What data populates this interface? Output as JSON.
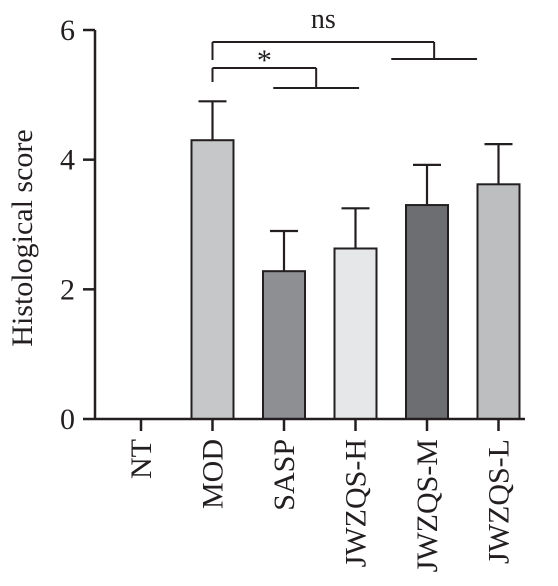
{
  "chart_data": {
    "type": "bar",
    "ylabel": "Histological score",
    "xlabel": "",
    "ylim": [
      0,
      6
    ],
    "yticks": [
      0,
      2,
      4,
      6
    ],
    "categories": [
      "NT",
      "MOD",
      "SASP",
      "JWZQS-H",
      "JWZQS-M",
      "JWZQS-L"
    ],
    "values": [
      0,
      4.3,
      2.28,
      2.63,
      3.3,
      3.62
    ],
    "errors": [
      0,
      0.6,
      0.62,
      0.62,
      0.62,
      0.62
    ],
    "bar_colors": [
      "#ffffff",
      "#c6c7c9",
      "#8d8f92",
      "#e6e7e8",
      "#6d6e71",
      "#bcbec0"
    ],
    "significance": [
      {
        "label": "*",
        "from": "MOD",
        "to": [
          "SASP",
          "JWZQS-H"
        ]
      },
      {
        "label": "ns",
        "from": "MOD",
        "to": [
          "JWZQS-M",
          "JWZQS-L"
        ]
      }
    ],
    "grid": false
  }
}
